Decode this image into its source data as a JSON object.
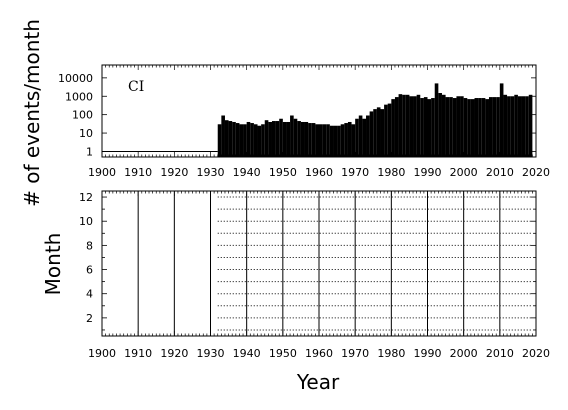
{
  "chart_data": [
    {
      "type": "bar",
      "panel_label": "CI",
      "ylabel": "# of events/month",
      "yscale": "log",
      "xlim": [
        1900,
        2020
      ],
      "ylim": [
        0.5,
        50000
      ],
      "x_ticks": [
        "1900",
        "1910",
        "1920",
        "1930",
        "1940",
        "1950",
        "1960",
        "1970",
        "1980",
        "1990",
        "2000",
        "2010",
        "2020"
      ],
      "y_ticks": [
        "1",
        "10",
        "100",
        "1000",
        "10000"
      ],
      "series": [
        {
          "x": [
            1932,
            1933,
            1934,
            1935,
            1936,
            1937,
            1938,
            1939,
            1940,
            1941,
            1942,
            1943,
            1944,
            1945,
            1946,
            1947,
            1948,
            1949,
            1950,
            1951,
            1952,
            1953,
            1954,
            1955,
            1956,
            1957,
            1958,
            1959,
            1960,
            1961,
            1962,
            1963,
            1964,
            1965,
            1966,
            1967,
            1968,
            1969,
            1970,
            1971,
            1972,
            1973,
            1974,
            1975,
            1976,
            1977,
            1978,
            1979,
            1980,
            1981,
            1982,
            1983,
            1984,
            1985,
            1986,
            1987,
            1988,
            1989,
            1990,
            1991,
            1992,
            1993,
            1994,
            1995,
            1996,
            1997,
            1998,
            1999,
            2000,
            2001,
            2002,
            2003,
            2004,
            2005,
            2006,
            2007,
            2008,
            2009,
            2010,
            2011,
            2012,
            2013,
            2014,
            2015,
            2016,
            2017,
            2018
          ],
          "values": [
            30,
            90,
            50,
            45,
            40,
            35,
            30,
            30,
            40,
            35,
            30,
            25,
            30,
            50,
            40,
            45,
            45,
            60,
            40,
            40,
            90,
            60,
            45,
            40,
            40,
            35,
            35,
            30,
            30,
            30,
            30,
            25,
            25,
            25,
            30,
            35,
            40,
            30,
            60,
            90,
            60,
            90,
            150,
            200,
            250,
            200,
            350,
            400,
            700,
            900,
            1300,
            1200,
            1200,
            1000,
            1000,
            1200,
            800,
            900,
            700,
            800,
            5000,
            1500,
            1200,
            900,
            900,
            800,
            1000,
            1000,
            800,
            700,
            700,
            800,
            800,
            800,
            700,
            900,
            900,
            900,
            5000,
            1200,
            1000,
            1000,
            1200,
            1000,
            1000,
            1000,
            1200
          ]
        }
      ]
    },
    {
      "type": "scatter",
      "ylabel": "Month",
      "xlabel": "Year",
      "xlim": [
        1900,
        2020
      ],
      "ylim": [
        0.5,
        12.5
      ],
      "x_ticks": [
        "1900",
        "1910",
        "1920",
        "1930",
        "1940",
        "1950",
        "1960",
        "1970",
        "1980",
        "1990",
        "2000",
        "2010",
        "2020"
      ],
      "y_ticks": [
        "2",
        "4",
        "6",
        "8",
        "10",
        "12"
      ],
      "vertical_lines": [
        1910,
        1920,
        1930,
        1940,
        1950,
        1960,
        1970,
        1980,
        1990,
        2000,
        2010
      ],
      "months": [
        1,
        2,
        3,
        4,
        5,
        6,
        7,
        8,
        9,
        10,
        11,
        12
      ],
      "coverage_x_range": [
        1932,
        2018
      ]
    }
  ]
}
